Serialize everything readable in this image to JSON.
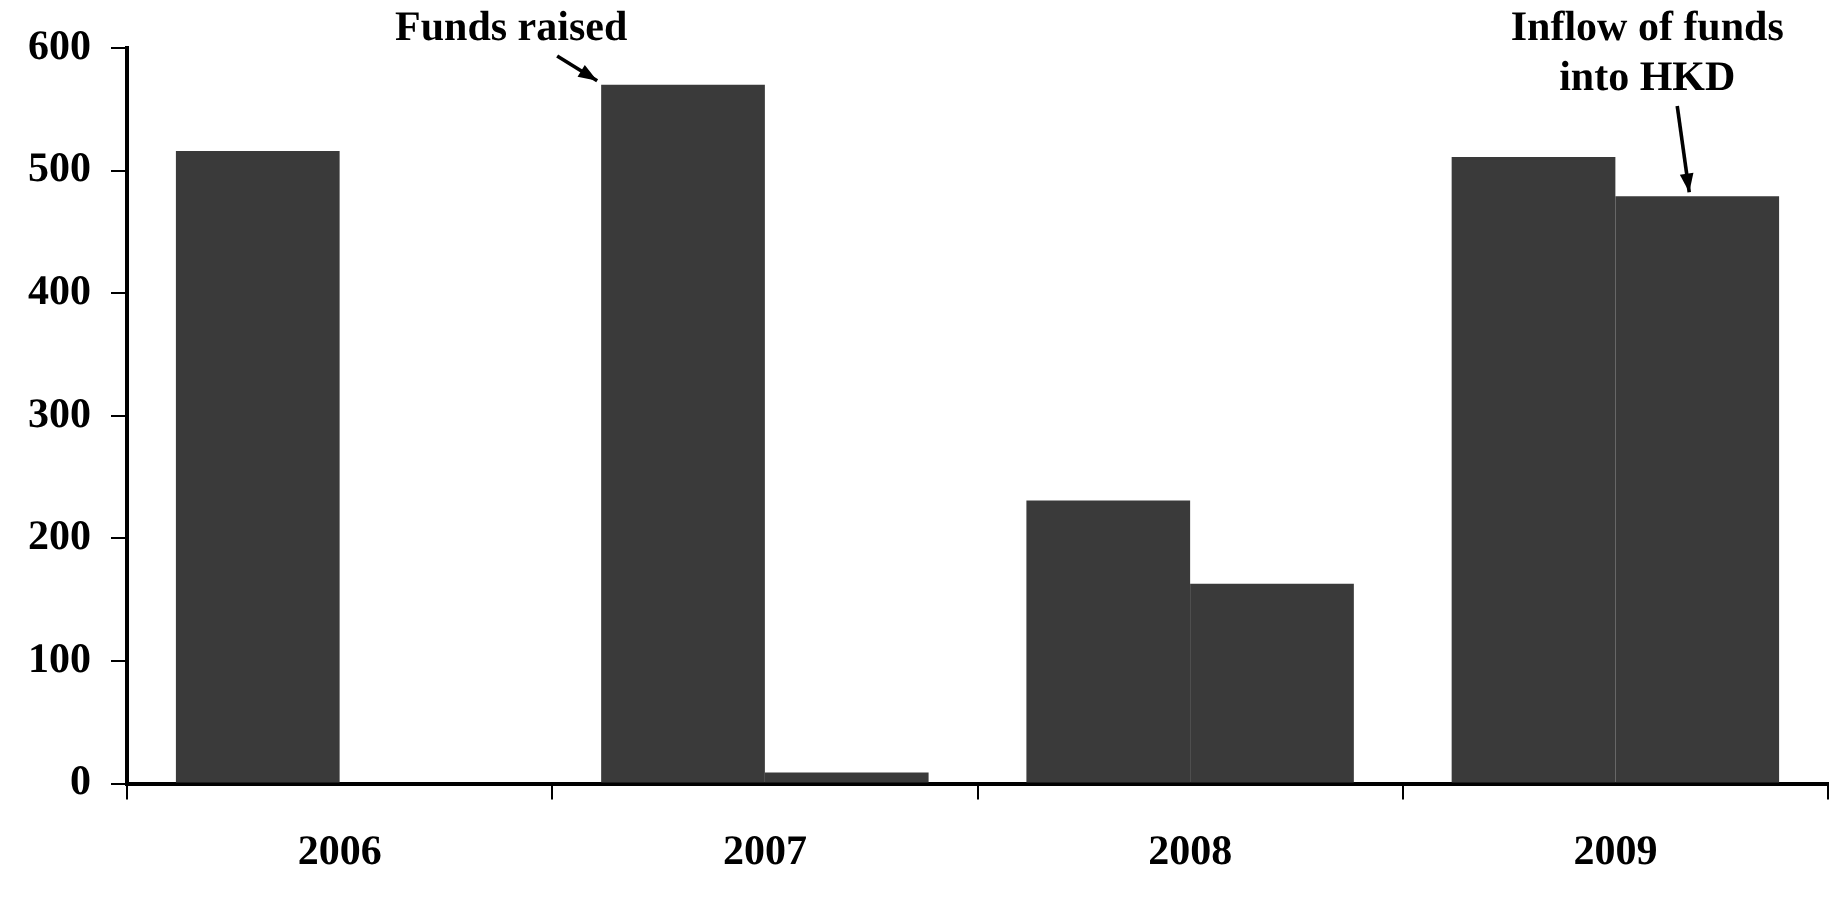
{
  "chart_data": {
    "type": "bar",
    "categories": [
      "2006",
      "2007",
      "2008",
      "2009"
    ],
    "series": [
      {
        "name": "Funds raised",
        "color": "#3a3a3a",
        "values": [
          516,
          570,
          231,
          511
        ]
      },
      {
        "name": "Inflow of funds into HKD",
        "color": "#3a3a3a",
        "values": [
          0,
          9,
          163,
          479
        ]
      }
    ],
    "ylim": [
      0,
      600
    ],
    "yticks": [
      0,
      100,
      200,
      300,
      400,
      500,
      600
    ],
    "grid": false,
    "legend": false
  }
}
